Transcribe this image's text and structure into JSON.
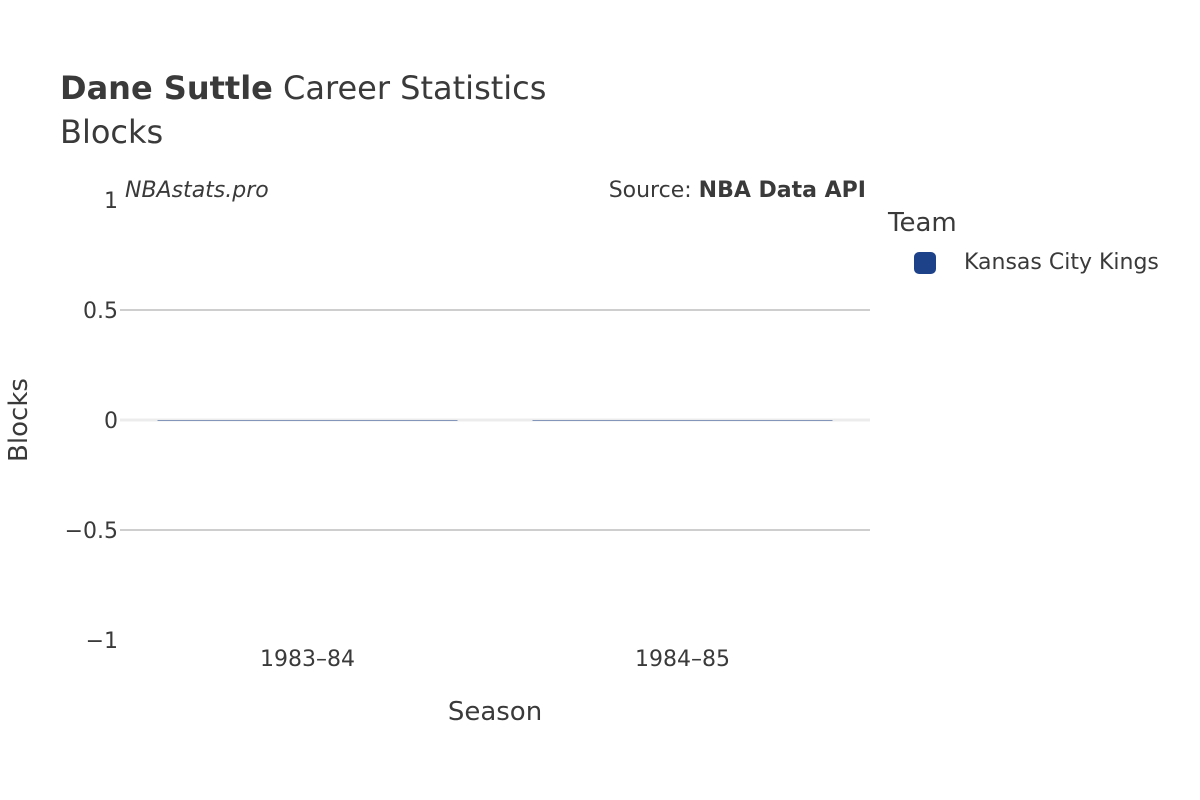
{
  "header": {
    "player_name": "Dane Suttle",
    "title_rest": " Career Statistics",
    "subtitle": "Blocks"
  },
  "watermark": "NBAstats.pro",
  "source": {
    "prefix": "Source: ",
    "name": "NBA Data API"
  },
  "legend": {
    "title": "Team",
    "items": [
      {
        "label": "Kansas City Kings",
        "color": "#1d428a"
      }
    ]
  },
  "chart_data": {
    "type": "bar",
    "title": "Dane Suttle Career Statistics",
    "subtitle": "Blocks",
    "xlabel": "Season",
    "ylabel": "Blocks",
    "categories": [
      "1983–84",
      "1984–85"
    ],
    "series": [
      {
        "name": "Kansas City Kings",
        "color": "#1d428a",
        "values": [
          0,
          0
        ]
      }
    ],
    "ylim": [
      -1,
      1
    ],
    "yticks": [
      1,
      0.5,
      0,
      -0.5,
      -1
    ],
    "ytick_labels": [
      "1",
      "0.5",
      "0",
      "−0.5",
      "−1"
    ],
    "grid": true,
    "legend_position": "right"
  }
}
